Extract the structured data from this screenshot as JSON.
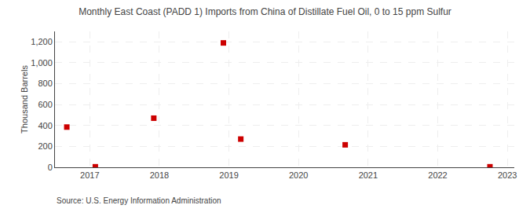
{
  "chart_data": {
    "type": "scatter",
    "title": "Monthly East Coast (PADD 1) Imports from China of Distillate Fuel Oil, 0 to 15 ppm Sulfur",
    "ylabel": "Thousand Barrels",
    "annotations": [
      "Source: U.S. Energy Information Administration"
    ],
    "x": [
      2016.67,
      2017.08,
      2017.92,
      2018.92,
      2019.17,
      2020.67,
      2022.75
    ],
    "values": [
      385,
      5,
      470,
      1190,
      270,
      215,
      5
    ],
    "color": "#cc0000",
    "marker": "square",
    "xlim": [
      2016.5,
      2023.1
    ],
    "xticks": [
      2017,
      2018,
      2019,
      2020,
      2021,
      2022,
      2023
    ],
    "ylim": [
      0,
      1300
    ],
    "yticks": [
      0,
      200,
      400,
      600,
      800,
      {
        "value": 1000,
        "label": "1,000"
      },
      {
        "value": 1200,
        "label": "1,200"
      }
    ],
    "grid": true
  }
}
